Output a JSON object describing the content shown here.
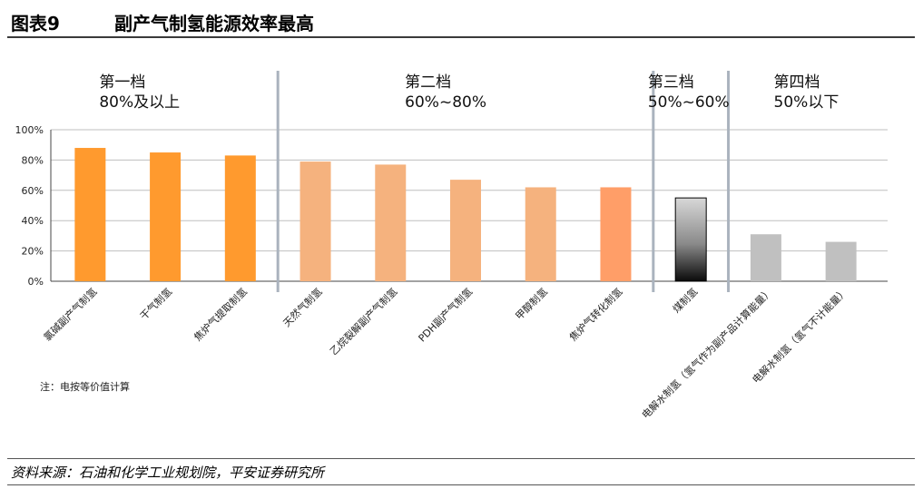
{
  "header": {
    "figure_label": "图表9",
    "title": "副产气制氢能源效率最高"
  },
  "footer": {
    "source": "资料来源：石油和化学工业规划院，平安证券研究所"
  },
  "chart_data": {
    "type": "bar",
    "categories": [
      "氯碱副产气制氢",
      "干气制氢",
      "焦炉气提取制氢",
      "天然气制氢",
      "乙烷裂解副产气制氢",
      "PDH副产气制氢",
      "甲醇制氢",
      "焦炉气转化制氢",
      "煤制氢",
      "电解水制氢（氢气作为副产品计算能量）",
      "电解水制氢（氢气不计能量）"
    ],
    "values": [
      88,
      85,
      83,
      79,
      77,
      67,
      62,
      62,
      55,
      31,
      26
    ],
    "bar_colors": [
      "#ff9a2e",
      "#ff9a2e",
      "#ff9a2e",
      "#f5b27e",
      "#f5b27e",
      "#f5b27e",
      "#f5b27e",
      "#ff9e68",
      "gradient",
      "#c0c0c0",
      "#c0c0c0"
    ],
    "ylim": [
      0,
      100
    ],
    "yticks": [
      "0%",
      "20%",
      "40%",
      "60%",
      "80%",
      "100%"
    ],
    "grid": true,
    "tiers": [
      {
        "name": "第一档",
        "range": "80%及以上"
      },
      {
        "name": "第二档",
        "range": "60%~80%"
      },
      {
        "name": "第三档",
        "range": "50%~60%"
      },
      {
        "name": "第四档",
        "range": "50%以下"
      }
    ],
    "note": "注：电按等价值计算"
  }
}
